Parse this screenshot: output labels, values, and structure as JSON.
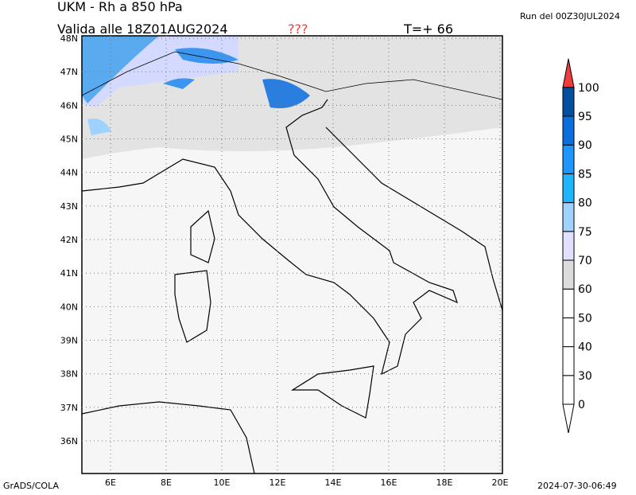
{
  "header": {
    "title": "UKM - Rh a 850 hPa",
    "valid": "Valida alle 18Z01AUG2024",
    "flag": "???",
    "lead": "T=+ 66",
    "run": "Run del 00Z30JUL2024"
  },
  "footer": {
    "left": "GrADS/COLA",
    "right": "2024-07-30-06:49"
  },
  "map": {
    "lat_labels": [
      "48N",
      "47N",
      "46N",
      "45N",
      "44N",
      "43N",
      "42N",
      "41N",
      "40N",
      "39N",
      "38N",
      "37N",
      "36N"
    ],
    "lon_labels": [
      "6E",
      "8E",
      "10E",
      "12E",
      "14E",
      "16E",
      "18E",
      "20E"
    ]
  },
  "colorbar": {
    "levels": [
      "0",
      "30",
      "40",
      "50",
      "60",
      "70",
      "75",
      "80",
      "85",
      "90",
      "95",
      "100"
    ],
    "colors": [
      "#ffffff",
      "#ffffff",
      "#ffffff",
      "#ffffff",
      "#dcdcdc",
      "#e1e1ff",
      "#a0d2ff",
      "#1eb4ff",
      "#1e96ff",
      "#0a6edc",
      "#0050a0"
    ],
    "under_color": "#ffffff",
    "over_color": "#f03c3c"
  }
}
